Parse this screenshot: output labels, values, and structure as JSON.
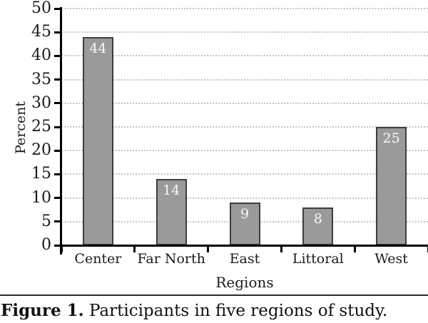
{
  "figure": {
    "caption_label": "Figure 1.",
    "caption_text": " Participants in five regions of study."
  },
  "chart_data": {
    "type": "bar",
    "title": "",
    "xlabel": "Regions",
    "ylabel": "Percent",
    "categories": [
      "Center",
      "Far North",
      "East",
      "Littoral",
      "West"
    ],
    "values": [
      44,
      14,
      9,
      8,
      25
    ],
    "ylim": [
      0,
      50
    ],
    "yticks": [
      0,
      5,
      10,
      15,
      20,
      25,
      30,
      35,
      40,
      45,
      50
    ],
    "grid": "horizontal-dotted",
    "legend": "none",
    "bar_color": "#9a9a9a",
    "bar_border_color": "#3d3d3d",
    "value_label_color": "#f8f8f8",
    "axis_color": "#000000",
    "gridline_color": "#c4c4c4"
  }
}
